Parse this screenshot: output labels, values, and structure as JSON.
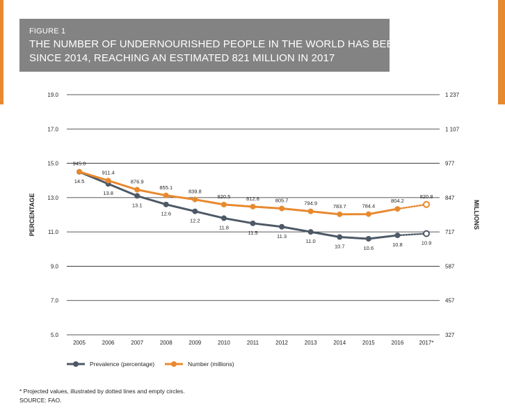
{
  "figure": {
    "label": "FIGURE 1",
    "title_line1": "THE NUMBER OF UNDERNOURISHED PEOPLE IN THE WORLD HAS BEEN ON THE RISE",
    "title_line2": "SINCE 2014, REACHING AN ESTIMATED 821 MILLION IN 2017"
  },
  "footnote": "* Projected values, illustrated by dotted lines and empty circles.",
  "source": "SOURCE: FAO.",
  "colors": {
    "prevalence": "#4d5966",
    "number": "#e8892f",
    "grid": "#231f20",
    "header_bg": "#838383"
  },
  "chart_data": {
    "type": "line",
    "categories": [
      "2005",
      "2006",
      "2007",
      "2008",
      "2009",
      "2010",
      "2011",
      "2012",
      "2013",
      "2014",
      "2015",
      "2016",
      "2017*"
    ],
    "ylabel": "PERCENTAGE",
    "ylabel_right": "MILLIONS",
    "ylim": [
      5,
      19
    ],
    "y_ticks": [
      "5.0",
      "7.0",
      "9.0",
      "11.0",
      "13.0",
      "15.0",
      "17.0",
      "19.0"
    ],
    "ylim_right": [
      327,
      1237
    ],
    "y_ticks_right": [
      "327",
      "457",
      "587",
      "717",
      "847",
      "977",
      "1 107",
      "1 237"
    ],
    "grid": true,
    "legend_position": "bottom-left",
    "projected_from_index": 11,
    "series": [
      {
        "name": "Prevalence (percentage)",
        "axis": "left",
        "color": "#4d5966",
        "values": [
          14.5,
          13.8,
          13.1,
          12.6,
          12.2,
          11.8,
          11.5,
          11.3,
          11.0,
          10.7,
          10.6,
          10.8,
          10.9
        ],
        "labels": [
          "14.5",
          "13.8",
          "13.1",
          "12.6",
          "12.2",
          "11.8",
          "11.5",
          "11.3",
          "11.0",
          "10.7",
          "10.6",
          "10.8",
          "10.9"
        ]
      },
      {
        "name": "Number (millions)",
        "axis": "right",
        "color": "#e8892f",
        "values": [
          945.0,
          911.4,
          876.9,
          855.1,
          839.8,
          820.5,
          812.8,
          805.7,
          794.9,
          783.7,
          784.4,
          804.2,
          820.8
        ],
        "labels": [
          "945.0",
          "911.4",
          "876.9",
          "855.1",
          "839.8",
          "820.5",
          "812.8",
          "805.7",
          "794.9",
          "783.7",
          "784.4",
          "804.2",
          "820.8"
        ]
      }
    ]
  }
}
